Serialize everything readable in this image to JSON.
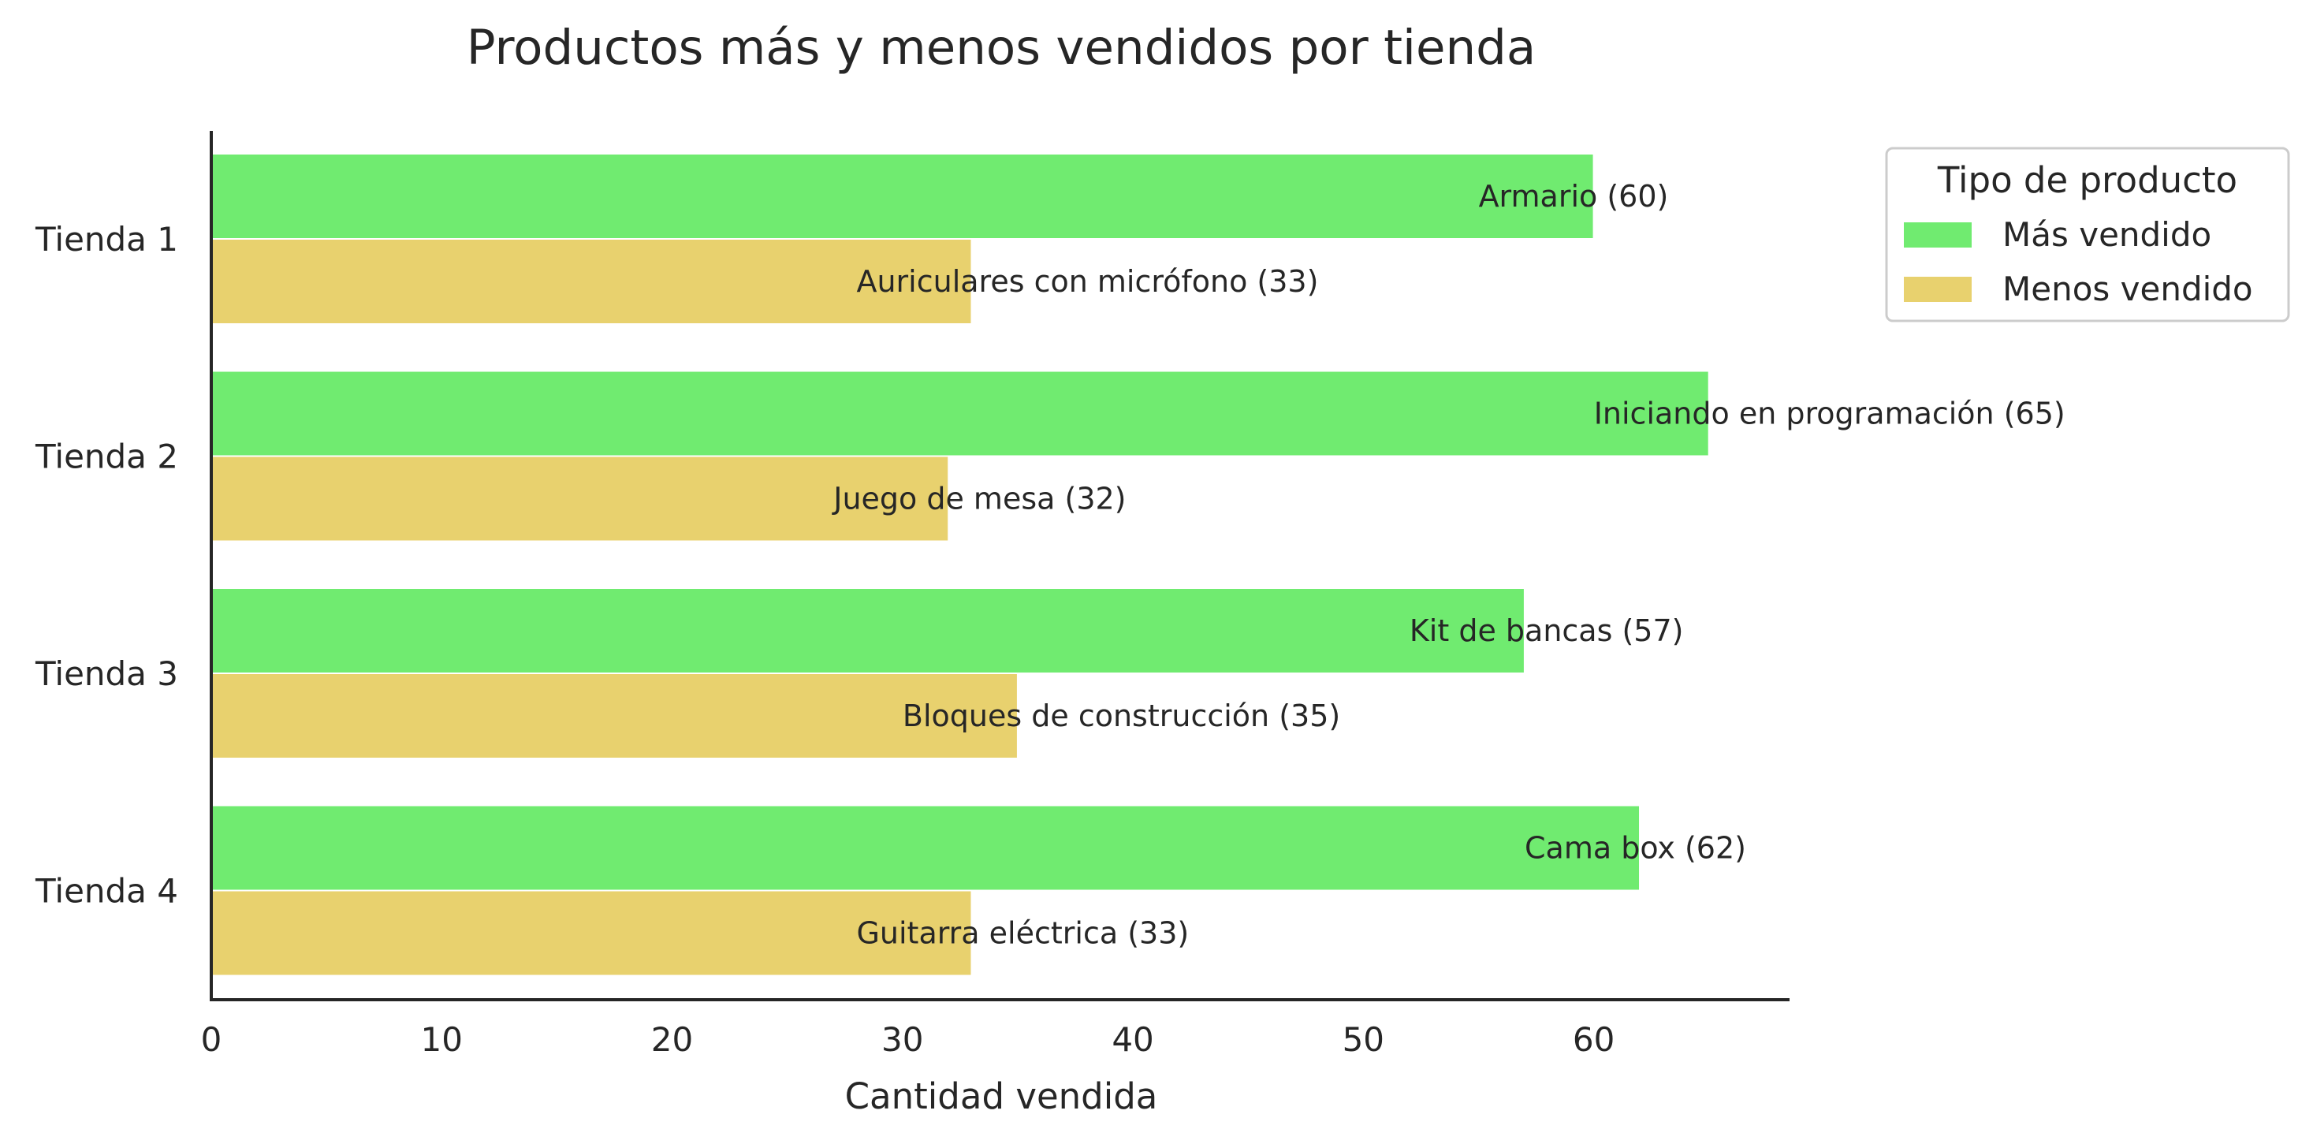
{
  "chart_data": {
    "type": "bar",
    "orientation": "horizontal",
    "title": "Productos más y menos vendidos por tienda",
    "xlabel": "Cantidad vendida",
    "ylabel": "",
    "xlim": [
      0,
      68.5
    ],
    "xticks": [
      0,
      10,
      20,
      30,
      40,
      50,
      60
    ],
    "grid": false,
    "categories": [
      "Tienda 1",
      "Tienda 2",
      "Tienda 3",
      "Tienda 4"
    ],
    "series": [
      {
        "name": "Más vendido",
        "color": "#70eb70",
        "values": [
          60,
          65,
          57,
          62
        ],
        "labels": [
          "Armario (60)",
          "Iniciando en programación (65)",
          "Kit de bancas (57)",
          "Cama box (62)"
        ]
      },
      {
        "name": "Menos vendido",
        "color": "#e8d16e",
        "values": [
          33,
          32,
          35,
          33
        ],
        "labels": [
          "Auriculares con micrófono (33)",
          "Juego de mesa (32)",
          "Bloques de construcción (35)",
          "Guitarra eléctrica (33)"
        ]
      }
    ],
    "legend": {
      "title": "Tipo de producto",
      "placement": "top-right, outside plot"
    }
  }
}
